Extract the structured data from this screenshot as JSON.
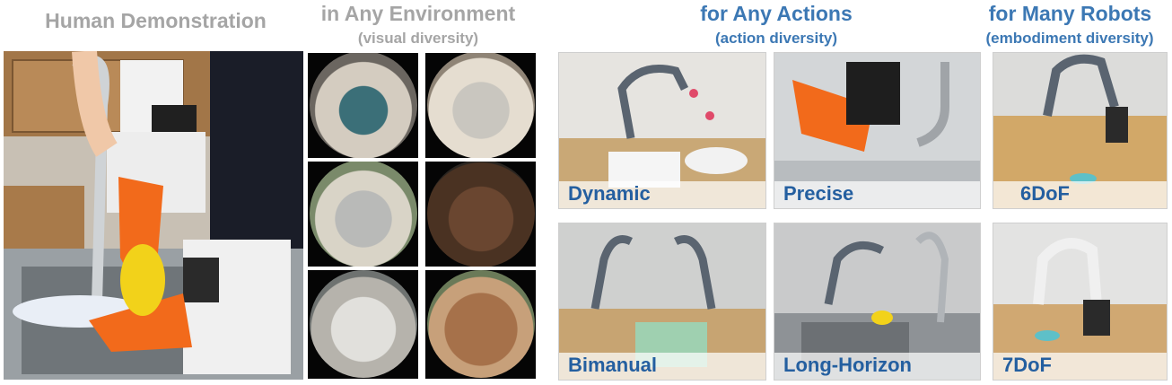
{
  "headers": {
    "human": "Human Demonstration",
    "environment": "in Any Environment",
    "environment_sub": "(visual diversity)",
    "actions": "for Any Actions",
    "actions_sub": "(action diversity)",
    "robots": "for Many Robots",
    "robots_sub": "(embodiment diversity)"
  },
  "captions": {
    "dynamic": "Dynamic",
    "precise": "Precise",
    "bimanual": "Bimanual",
    "long_horizon": "Long-Horizon",
    "dof6": "6DoF",
    "dof7": "7DoF"
  },
  "colors": {
    "gray_heading": "#a5a5a5",
    "blue_heading": "#3c78b4",
    "caption_blue": "#245fa0",
    "gripper_orange": "#f26a1b"
  }
}
